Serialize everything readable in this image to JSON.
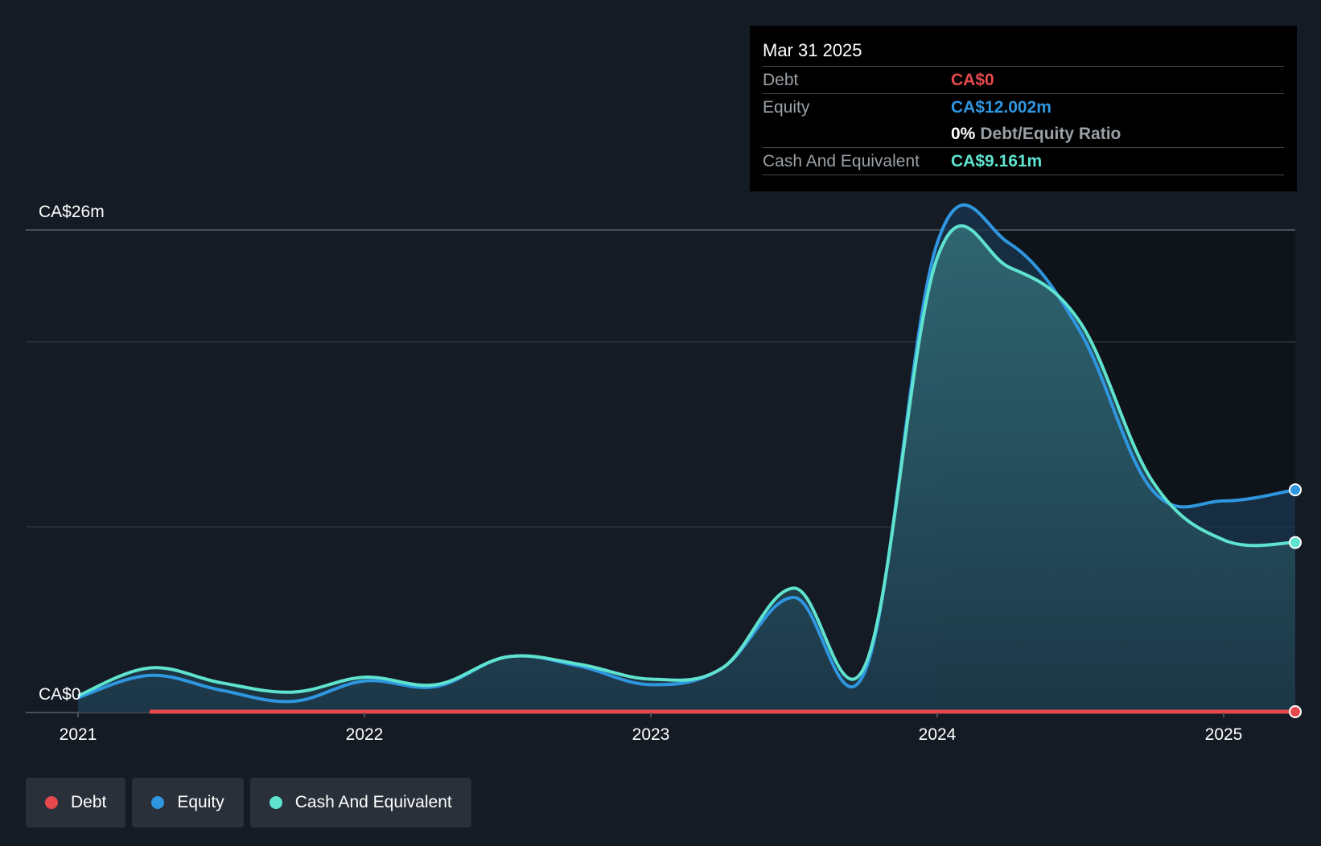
{
  "tooltip": {
    "date": "Mar 31 2025",
    "debt_label": "Debt",
    "debt_value": "CA$0",
    "equity_label": "Equity",
    "equity_value": "CA$12.002m",
    "ratio_value": "0%",
    "ratio_label": "Debt/Equity Ratio",
    "cash_label": "Cash And Equivalent",
    "cash_value": "CA$9.161m"
  },
  "legend": {
    "debt": "Debt",
    "equity": "Equity",
    "cash": "Cash And Equivalent"
  },
  "colors": {
    "debt": "#e5484d",
    "equity": "#2f96e0",
    "cash": "#5fe3cf",
    "background": "#151b24"
  },
  "chart_data": {
    "type": "area",
    "title": "",
    "xlabel": "",
    "ylabel": "",
    "ylim": [
      0,
      26
    ],
    "y_unit": "CA$ millions",
    "y_tick_labels": [
      "CA$0",
      "CA$26m"
    ],
    "x_tick_labels": [
      "2021",
      "2022",
      "2023",
      "2024",
      "2025"
    ],
    "xlim": [
      2021.0,
      2025.25
    ],
    "grid": true,
    "legend_position": "bottom-left",
    "series": [
      {
        "name": "Debt",
        "color": "#e5484d",
        "x": [
          2021.25,
          2025.25
        ],
        "values": [
          0,
          0
        ]
      },
      {
        "name": "Equity",
        "color": "#2f96e0",
        "x": [
          2021.0,
          2021.25,
          2021.5,
          2021.75,
          2022.0,
          2022.25,
          2022.5,
          2022.75,
          2023.0,
          2023.25,
          2023.5,
          2023.75,
          2024.0,
          2024.25,
          2024.5,
          2024.75,
          2025.0,
          2025.25
        ],
        "values": [
          0.8,
          2.0,
          1.2,
          0.6,
          1.7,
          1.4,
          3.0,
          2.5,
          1.5,
          2.4,
          6.2,
          2.3,
          25.3,
          25.3,
          20.5,
          12.0,
          11.4,
          12.0
        ]
      },
      {
        "name": "Cash And Equivalent",
        "color": "#5fe3cf",
        "x": [
          2021.0,
          2021.25,
          2021.5,
          2021.75,
          2022.0,
          2022.25,
          2022.5,
          2022.75,
          2023.0,
          2023.25,
          2023.5,
          2023.75,
          2024.0,
          2024.25,
          2024.5,
          2024.75,
          2025.0,
          2025.25
        ],
        "values": [
          0.9,
          2.4,
          1.6,
          1.1,
          1.9,
          1.5,
          3.0,
          2.6,
          1.8,
          2.4,
          6.7,
          2.6,
          24.5,
          24.0,
          21.0,
          12.5,
          9.3,
          9.161
        ]
      }
    ]
  }
}
